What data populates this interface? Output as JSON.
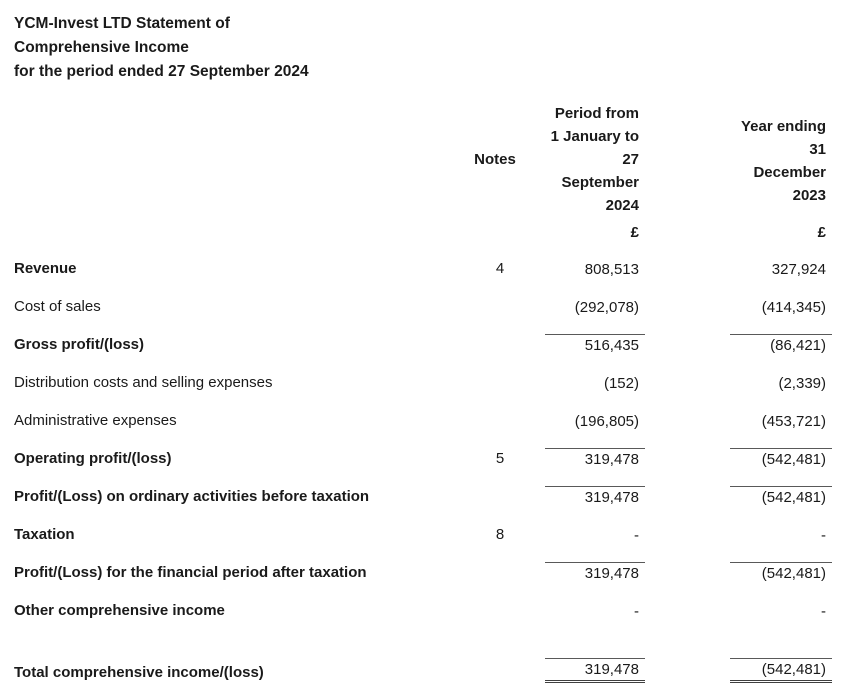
{
  "title": "YCM-Invest LTD Statement of\nComprehensive Income\nfor the period ended 27 September 2024",
  "columns": {
    "notes": "Notes",
    "period_2024": "Period from\n1 January to\n27\nSeptember\n2024",
    "year_2023": "Year ending\n31\nDecember\n2023",
    "currency_2024": "£",
    "currency_2023": "£"
  },
  "rows": [
    {
      "label": "Revenue",
      "note": "4",
      "v2024": "808,513",
      "v2023": "327,924"
    },
    {
      "label": "Cost of sales",
      "note": "",
      "v2024": "(292,078)",
      "v2023": "(414,345)"
    },
    {
      "label": "Gross profit/(loss)",
      "note": "",
      "v2024": "516,435",
      "v2023": "(86,421)"
    },
    {
      "label": "Distribution costs and selling expenses",
      "note": "",
      "v2024": "(152)",
      "v2023": "(2,339)"
    },
    {
      "label": "Administrative expenses",
      "note": "",
      "v2024": "(196,805)",
      "v2023": "(453,721)"
    },
    {
      "label": "Operating profit/(loss)",
      "note": "5",
      "v2024": "319,478",
      "v2023": "(542,481)"
    },
    {
      "label": "Profit/(Loss) on ordinary activities before taxation",
      "note": "",
      "v2024": "319,478",
      "v2023": "(542,481)"
    },
    {
      "label": "Taxation",
      "note": "8",
      "v2024": "-",
      "v2023": "-"
    },
    {
      "label": "Profit/(Loss) for the financial period after taxation",
      "note": "",
      "v2024": "319,478",
      "v2023": "(542,481)"
    },
    {
      "label": "Other comprehensive income",
      "note": "",
      "v2024": "-",
      "v2023": "-"
    },
    {
      "label": "Total comprehensive income/(loss)",
      "note": "",
      "v2024": "319,478",
      "v2023": "(542,481)"
    }
  ],
  "colors": {
    "background": "#ffffff",
    "text": "#1a1a1a",
    "rule_line": "#595959"
  }
}
